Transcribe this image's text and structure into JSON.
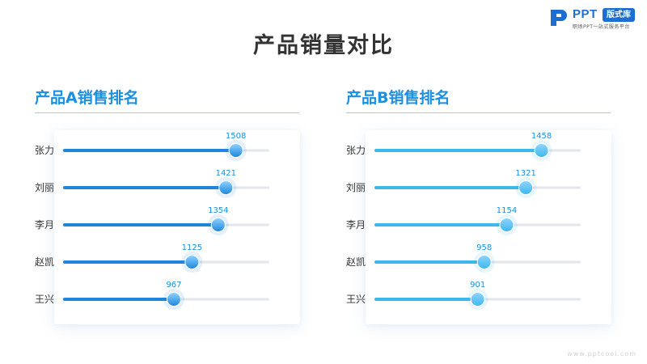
{
  "title": "产品销量对比",
  "logo": {
    "brand": "PPT",
    "badge": "版式库",
    "tagline": "职场PPT一站式服务平台"
  },
  "watermark": "www.pptcool.com",
  "colors": {
    "title": "#333333",
    "panel_title": "#1b8fe0",
    "bar_a": "#1e84dc",
    "bar_b": "#3cb8ec",
    "track": "#e3e6ea",
    "value_label": "#1b8fe0"
  },
  "chart_data": [
    {
      "type": "bar",
      "orientation": "horizontal",
      "title": "产品A销售排名",
      "categories": [
        "张力",
        "刘丽",
        "李月",
        "赵凯",
        "王兴"
      ],
      "values": [
        1508,
        1421,
        1354,
        1125,
        967
      ],
      "xlim": [
        0,
        1800
      ],
      "grid": false
    },
    {
      "type": "bar",
      "orientation": "horizontal",
      "title": "产品B销售排名",
      "categories": [
        "张力",
        "刘丽",
        "李月",
        "赵凯",
        "王兴"
      ],
      "values": [
        1458,
        1321,
        1154,
        958,
        901
      ],
      "xlim": [
        0,
        1800
      ],
      "grid": false
    }
  ]
}
